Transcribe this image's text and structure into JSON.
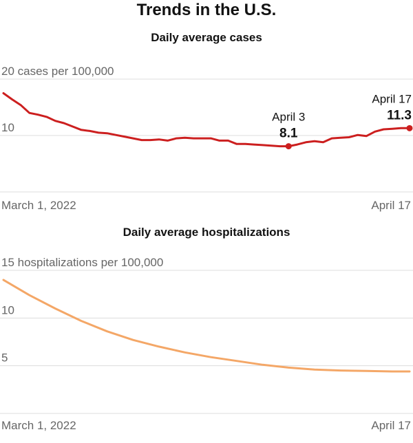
{
  "header": {
    "title": "Trends in the U.S."
  },
  "colors": {
    "cases": "#cc1f1f",
    "hospitalizations": "#f4a767",
    "grid": "#dcdcdc",
    "tick_text": "#666666"
  },
  "chart_data": [
    {
      "type": "line",
      "title": "Daily average cases",
      "ylim": [
        0,
        20
      ],
      "yticks": [
        10,
        20
      ],
      "ytick_labels": [
        "10",
        "20 cases per 100,000"
      ],
      "x_range": [
        "2022-03-01",
        "2022-04-17"
      ],
      "x_labels": [
        "March 1, 2022",
        "April 17"
      ],
      "grid": true,
      "series": [
        {
          "x": [
            "2022-03-01",
            "2022-03-02",
            "2022-03-03",
            "2022-03-04",
            "2022-03-05",
            "2022-03-06",
            "2022-03-07",
            "2022-03-08",
            "2022-03-09",
            "2022-03-10",
            "2022-03-11",
            "2022-03-12",
            "2022-03-13",
            "2022-03-14",
            "2022-03-15",
            "2022-03-16",
            "2022-03-17",
            "2022-03-18",
            "2022-03-19",
            "2022-03-20",
            "2022-03-21",
            "2022-03-22",
            "2022-03-23",
            "2022-03-24",
            "2022-03-25",
            "2022-03-26",
            "2022-03-27",
            "2022-03-28",
            "2022-03-29",
            "2022-03-30",
            "2022-03-31",
            "2022-04-01",
            "2022-04-02",
            "2022-04-03",
            "2022-04-04",
            "2022-04-05",
            "2022-04-06",
            "2022-04-07",
            "2022-04-08",
            "2022-04-09",
            "2022-04-10",
            "2022-04-11",
            "2022-04-12",
            "2022-04-13",
            "2022-04-14",
            "2022-04-15",
            "2022-04-16",
            "2022-04-17"
          ],
          "values": [
            17.5,
            16.4,
            15.4,
            14.0,
            13.7,
            13.3,
            12.6,
            12.2,
            11.6,
            11.0,
            10.8,
            10.5,
            10.4,
            10.1,
            9.8,
            9.5,
            9.2,
            9.2,
            9.3,
            9.1,
            9.5,
            9.6,
            9.5,
            9.5,
            9.5,
            9.1,
            9.1,
            8.5,
            8.5,
            8.4,
            8.3,
            8.2,
            8.1,
            8.1,
            8.4,
            8.8,
            9.0,
            8.8,
            9.5,
            9.6,
            9.7,
            10.1,
            9.9,
            10.7,
            11.1,
            11.2,
            11.3,
            11.3
          ]
        }
      ],
      "annotations": [
        {
          "date_label": "April 3",
          "value_label": "8.1",
          "x": "2022-04-03",
          "y": 8.1
        },
        {
          "date_label": "April 17",
          "value_label": "11.3",
          "x": "2022-04-17",
          "y": 11.3
        }
      ]
    },
    {
      "type": "line",
      "title": "Daily average hospitalizations",
      "ylim": [
        0,
        15
      ],
      "yticks": [
        5,
        10,
        15
      ],
      "ytick_labels": [
        "5",
        "10",
        "15 hospitalizations per 100,000"
      ],
      "x_range": [
        "2022-03-01",
        "2022-04-17"
      ],
      "x_labels": [
        "March 1, 2022",
        "April 17"
      ],
      "grid": true,
      "series": [
        {
          "x": [
            "2022-03-01",
            "2022-03-04",
            "2022-03-07",
            "2022-03-10",
            "2022-03-13",
            "2022-03-16",
            "2022-03-19",
            "2022-03-22",
            "2022-03-25",
            "2022-03-28",
            "2022-03-31",
            "2022-04-03",
            "2022-04-06",
            "2022-04-09",
            "2022-04-12",
            "2022-04-15",
            "2022-04-17"
          ],
          "values": [
            14.0,
            12.4,
            11.0,
            9.7,
            8.6,
            7.7,
            7.0,
            6.4,
            5.9,
            5.5,
            5.1,
            4.8,
            4.6,
            4.5,
            4.45,
            4.4,
            4.4
          ]
        }
      ]
    }
  ]
}
